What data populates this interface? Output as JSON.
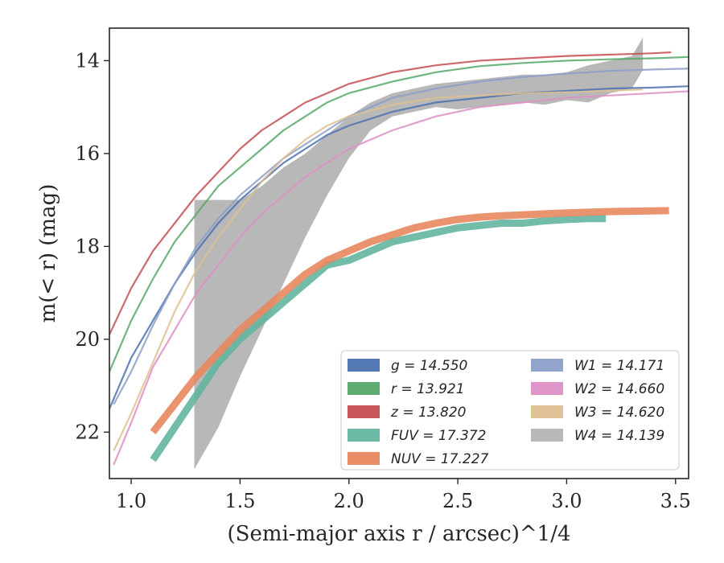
{
  "chart_data": {
    "type": "line",
    "xlabel": "(Semi-major axis r / arcsec)^1/4",
    "ylabel": "m(< r) (mag)",
    "xlim": [
      0.9,
      3.56
    ],
    "ylim": [
      23.0,
      13.3
    ],
    "y_inverted": true,
    "x_ticks": [
      "1.0",
      "1.5",
      "2.0",
      "2.5",
      "3.0",
      "3.5"
    ],
    "y_ticks": [
      "14",
      "16",
      "18",
      "20",
      "22"
    ],
    "grid": false,
    "legend_position": "lower-right",
    "legend_columns": 2,
    "series": [
      {
        "name": "g = 14.550",
        "color": "#4c72b0",
        "x": [
          0.9,
          1.0,
          1.1,
          1.2,
          1.3,
          1.4,
          1.5,
          1.6,
          1.7,
          1.8,
          1.9,
          2.0,
          2.2,
          2.4,
          2.6,
          2.8,
          3.0,
          3.2,
          3.4,
          3.56
        ],
        "y": [
          21.5,
          20.4,
          19.6,
          18.8,
          18.1,
          17.5,
          17.0,
          16.6,
          16.2,
          15.9,
          15.6,
          15.4,
          15.1,
          14.9,
          14.8,
          14.7,
          14.65,
          14.6,
          14.58,
          14.55
        ]
      },
      {
        "name": "r = 13.921",
        "color": "#55a868",
        "x": [
          0.9,
          1.0,
          1.1,
          1.2,
          1.3,
          1.4,
          1.5,
          1.6,
          1.7,
          1.8,
          1.9,
          2.0,
          2.2,
          2.4,
          2.6,
          2.8,
          3.0,
          3.2,
          3.4,
          3.56
        ],
        "y": [
          20.7,
          19.6,
          18.7,
          17.9,
          17.3,
          16.7,
          16.3,
          15.9,
          15.5,
          15.2,
          14.9,
          14.7,
          14.45,
          14.25,
          14.12,
          14.05,
          14.0,
          13.97,
          13.95,
          13.92
        ]
      },
      {
        "name": "z = 13.820",
        "color": "#c44e52",
        "x": [
          0.9,
          1.0,
          1.1,
          1.2,
          1.3,
          1.4,
          1.5,
          1.6,
          1.7,
          1.8,
          1.9,
          2.0,
          2.2,
          2.4,
          2.6,
          2.8,
          3.0,
          3.2,
          3.4,
          3.48
        ],
        "y": [
          19.9,
          18.9,
          18.1,
          17.5,
          16.9,
          16.4,
          15.9,
          15.5,
          15.2,
          14.9,
          14.7,
          14.5,
          14.25,
          14.1,
          14.0,
          13.95,
          13.9,
          13.87,
          13.84,
          13.82
        ]
      },
      {
        "name": "FUV = 17.372",
        "color": "#64b5a0",
        "x": [
          1.1,
          1.2,
          1.3,
          1.4,
          1.5,
          1.6,
          1.7,
          1.8,
          1.9,
          2.0,
          2.1,
          2.2,
          2.3,
          2.4,
          2.5,
          2.6,
          2.7,
          2.8,
          2.9,
          3.0,
          3.1,
          3.18
        ],
        "y": [
          22.6,
          21.9,
          21.2,
          20.5,
          20.0,
          19.6,
          19.2,
          18.8,
          18.4,
          18.3,
          18.1,
          17.9,
          17.8,
          17.7,
          17.6,
          17.55,
          17.5,
          17.5,
          17.45,
          17.42,
          17.4,
          17.4
        ]
      },
      {
        "name": "NUV = 17.227",
        "color": "#e8875f",
        "x": [
          1.1,
          1.2,
          1.3,
          1.4,
          1.5,
          1.6,
          1.7,
          1.8,
          1.9,
          2.0,
          2.1,
          2.2,
          2.3,
          2.4,
          2.5,
          2.6,
          2.7,
          2.8,
          2.9,
          3.0,
          3.2,
          3.47
        ],
        "y": [
          22.0,
          21.4,
          20.8,
          20.3,
          19.8,
          19.4,
          19.0,
          18.6,
          18.3,
          18.1,
          17.9,
          17.75,
          17.6,
          17.5,
          17.42,
          17.37,
          17.34,
          17.32,
          17.3,
          17.28,
          17.25,
          17.23
        ]
      },
      {
        "name": "W1 = 14.171",
        "color": "#8c9ec9",
        "x": [
          0.92,
          1.0,
          1.1,
          1.2,
          1.3,
          1.4,
          1.5,
          1.6,
          1.7,
          1.8,
          1.9,
          2.0,
          2.2,
          2.4,
          2.6,
          2.8,
          3.0,
          3.2,
          3.4,
          3.56
        ],
        "y": [
          21.4,
          20.7,
          19.7,
          18.8,
          18.0,
          17.4,
          16.9,
          16.5,
          16.1,
          15.8,
          15.5,
          15.2,
          14.8,
          14.6,
          14.45,
          14.35,
          14.28,
          14.22,
          14.19,
          14.17
        ]
      },
      {
        "name": "W2 = 14.660",
        "color": "#dd8fc4",
        "x": [
          0.92,
          1.0,
          1.1,
          1.2,
          1.3,
          1.4,
          1.5,
          1.6,
          1.7,
          1.8,
          1.9,
          2.0,
          2.2,
          2.4,
          2.6,
          2.8,
          3.0,
          3.2,
          3.4,
          3.56
        ],
        "y": [
          22.7,
          21.8,
          20.6,
          19.8,
          19.0,
          18.4,
          17.8,
          17.3,
          16.9,
          16.5,
          16.2,
          15.9,
          15.5,
          15.2,
          15.0,
          14.9,
          14.8,
          14.75,
          14.7,
          14.66
        ]
      },
      {
        "name": "W3 = 14.620",
        "color": "#ddbf90",
        "x": [
          0.92,
          1.0,
          1.1,
          1.2,
          1.3,
          1.4,
          1.5,
          1.6,
          1.7,
          1.8,
          1.9,
          2.0,
          2.2,
          2.4,
          2.6,
          2.8,
          3.0,
          3.2,
          3.35
        ],
        "y": [
          22.4,
          21.6,
          20.5,
          19.4,
          18.5,
          17.8,
          17.2,
          16.6,
          16.1,
          15.7,
          15.4,
          15.2,
          14.95,
          14.8,
          14.75,
          14.7,
          14.68,
          14.65,
          14.62
        ]
      },
      {
        "name": "W4 = 14.139",
        "color": "#a0a0a0",
        "x": [
          1.29,
          1.4,
          1.5,
          1.6,
          1.7,
          1.8,
          1.9,
          2.0,
          2.1,
          2.2,
          2.3,
          2.4,
          2.5,
          2.6,
          2.7,
          2.8,
          2.9,
          3.0,
          3.1,
          3.2,
          3.3,
          3.35
        ],
        "y_upper": [
          17.0,
          17.0,
          17.0,
          16.7,
          16.3,
          16.0,
          15.6,
          15.2,
          14.9,
          14.7,
          14.6,
          14.5,
          14.45,
          14.4,
          14.35,
          14.3,
          14.3,
          14.25,
          14.1,
          14.0,
          13.9,
          13.5
        ],
        "y_lower": [
          22.8,
          21.9,
          20.8,
          19.8,
          18.8,
          17.8,
          16.9,
          16.1,
          15.5,
          15.2,
          15.1,
          15.0,
          15.05,
          15.0,
          14.95,
          14.9,
          14.95,
          14.85,
          14.9,
          14.7,
          14.6,
          14.2
        ]
      }
    ]
  }
}
